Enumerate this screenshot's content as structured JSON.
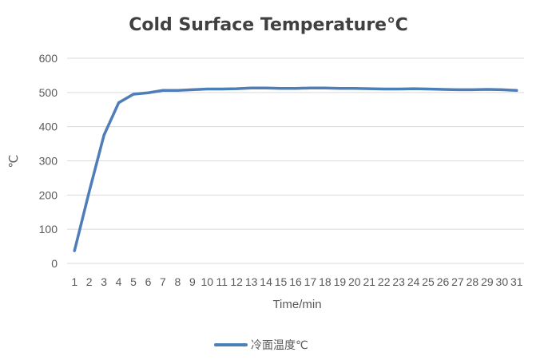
{
  "chart_data": {
    "type": "line",
    "title": "Cold Surface Temperature℃",
    "xlabel": "Time/min",
    "ylabel": "℃",
    "ylim": [
      0,
      600
    ],
    "yticks": [
      0,
      100,
      200,
      300,
      400,
      500,
      600
    ],
    "grid": true,
    "legend_position": "bottom",
    "categories": [
      "1",
      "2",
      "3",
      "4",
      "5",
      "6",
      "7",
      "8",
      "9",
      "10",
      "11",
      "12",
      "13",
      "14",
      "15",
      "16",
      "17",
      "18",
      "19",
      "20",
      "21",
      "22",
      "23",
      "24",
      "25",
      "26",
      "27",
      "28",
      "29",
      "30",
      "31"
    ],
    "series": [
      {
        "name": "冷面温度℃",
        "color": "#4f7db8",
        "values": [
          37,
          210,
          375,
          470,
          495,
          499,
          506,
          506,
          508,
          510,
          510,
          511,
          513,
          513,
          512,
          512,
          513,
          513,
          512,
          512,
          511,
          510,
          510,
          511,
          510,
          509,
          508,
          508,
          509,
          508,
          506
        ]
      }
    ]
  }
}
